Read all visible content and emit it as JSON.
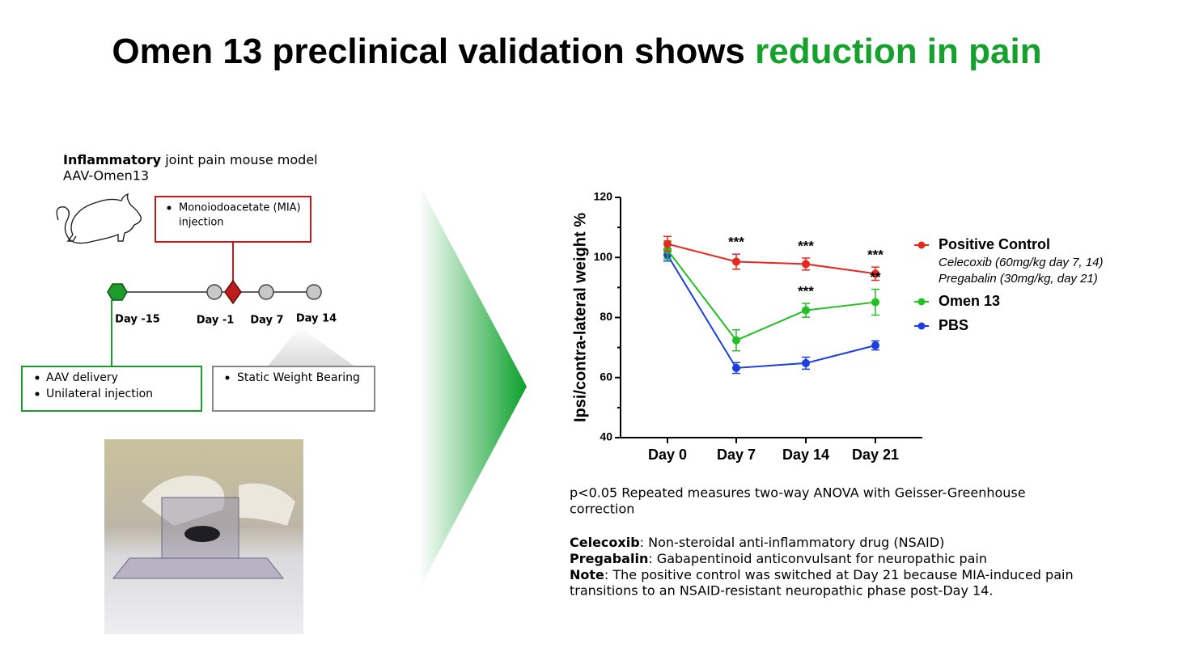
{
  "slide": {
    "title": "Omen 13 preclinical validation shows",
    "title_highlight": "reduction in pain"
  },
  "diagram": {
    "heading_bold": "Inflammatory",
    "heading": "joint pain mouse model",
    "subheading": "AAV-Omen13",
    "mia_box": [
      "Monoiodoacetate (MIA)",
      "injection"
    ],
    "timeline": [
      "Day -15",
      "Day -1",
      "Day 7",
      "Day 14"
    ],
    "delivery_box": [
      "AAV delivery",
      "Unilateral injection"
    ],
    "measure_box": [
      "Static Weight Bearing"
    ]
  },
  "chart_data": {
    "type": "line",
    "y_label": "Ipsi/contra-lateral weight %",
    "categories": [
      "Day 0",
      "Day 7",
      "Day 14",
      "Day 21"
    ],
    "ylim": [
      40,
      120
    ],
    "yticks": [
      40,
      60,
      80,
      100,
      120
    ],
    "grid": false,
    "series": [
      {
        "name": "Positive Control",
        "color": "#e8281e",
        "values": [
          104.5,
          98.6,
          97.8,
          94.6
        ],
        "errors": [
          2.5,
          2.5,
          2.0,
          2.2
        ],
        "notes": [
          "Celecoxib (60mg/kg day 7, 14)",
          "Pregabalin (30mg/kg, day 21)"
        ]
      },
      {
        "name": "Omen 13",
        "color": "#22c122",
        "values": [
          102.5,
          72.4,
          82.4,
          85.1
        ],
        "errors": [
          3.0,
          3.5,
          2.3,
          4.3
        ]
      },
      {
        "name": "PBS",
        "color": "#1a3ee0",
        "values": [
          100.8,
          63.2,
          64.8,
          70.7
        ],
        "errors": [
          2.0,
          1.8,
          2.0,
          1.5
        ]
      }
    ],
    "annotations": [
      {
        "text": "***",
        "category": "Day 7",
        "series": "Positive Control"
      },
      {
        "text": "***",
        "category": "Day 14",
        "series": "Positive Control"
      },
      {
        "text": "***",
        "category": "Day 21",
        "series": "Positive Control"
      },
      {
        "text": "***",
        "category": "Day 14",
        "series": "Omen 13"
      },
      {
        "text": "**",
        "category": "Day 21",
        "series": "Omen 13"
      }
    ]
  },
  "notes": {
    "stats": [
      "p<0.05 Repeated measures two-way ANOVA with Geisser-Greenhouse",
      "correction"
    ],
    "definitions": [
      {
        "term": "Celecoxib",
        "text": ":  Non-steroidal anti-inflammatory drug (NSAID)"
      },
      {
        "term": "Pregabalin",
        "text": ": Gabapentinoid anticonvulsant for neuropathic pain"
      },
      {
        "term": "Note",
        "text": ": The positive control was switched at Day 21 because MIA-induced pain"
      }
    ],
    "note_continued": "transitions to an NSAID-resistant neuropathic phase post-Day 14."
  }
}
